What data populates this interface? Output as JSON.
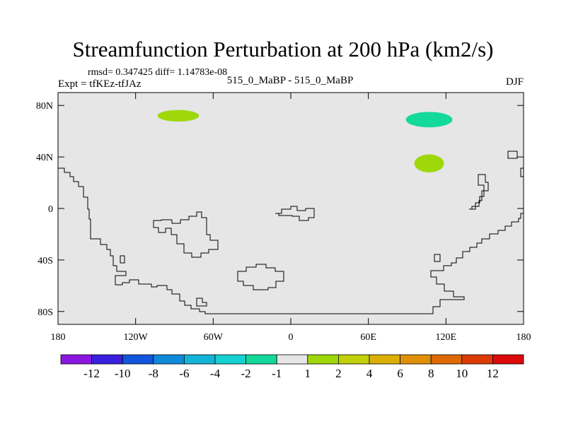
{
  "title": "Streamfunction Perturbation at 200 hPa (km2/s)",
  "stats": "rmsd= 0.347425 diff= 1.14783e-08",
  "expt": "Expt = tfKEz-tfJAz",
  "center_label": "515_0_MaBP - 515_0_MaBP",
  "season": "DJF",
  "map": {
    "x_ticks": [
      {
        "value": -180,
        "label": "180"
      },
      {
        "value": -120,
        "label": "120W"
      },
      {
        "value": -60,
        "label": "60W"
      },
      {
        "value": 0,
        "label": "0"
      },
      {
        "value": 60,
        "label": "60E"
      },
      {
        "value": 120,
        "label": "120E"
      },
      {
        "value": 180,
        "label": "180"
      }
    ],
    "y_ticks": [
      {
        "value": 80,
        "label": "80N"
      },
      {
        "value": 40,
        "label": "40N"
      },
      {
        "value": 0,
        "label": "0"
      },
      {
        "value": -40,
        "label": "40S"
      },
      {
        "value": -80,
        "label": "80S"
      }
    ],
    "lon_range": [
      -180,
      180
    ],
    "lat_range": [
      -90,
      90
    ],
    "background_color": "#e6e6e6",
    "blobs": [
      {
        "lon": -87,
        "lat": 72,
        "rlon": 16,
        "rlat": 4.5,
        "color": "#9ed80a"
      },
      {
        "lon": 107,
        "lat": 69,
        "rlon": 18,
        "rlat": 6,
        "color": "#13d99a"
      },
      {
        "lon": 107,
        "lat": 35,
        "rlon": 11.5,
        "rlat": 7,
        "color": "#9ed80a"
      }
    ]
  },
  "colorbar": {
    "colors": [
      "#8a17e0",
      "#3b1fde",
      "#1256de",
      "#0f8ad8",
      "#14b4d9",
      "#15d2d2",
      "#13d99a",
      "#e6e6e6",
      "#9ed80a",
      "#c1d00a",
      "#dcae08",
      "#e09008",
      "#dd6a06",
      "#dc3b06",
      "#dc0a0a"
    ],
    "labels": [
      "-12",
      "-10",
      "-8",
      "-6",
      "-4",
      "-2",
      "-1",
      "1",
      "2",
      "4",
      "6",
      "8",
      "10",
      "12"
    ]
  }
}
